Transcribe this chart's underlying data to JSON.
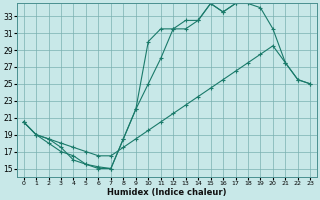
{
  "xlabel": "Humidex (Indice chaleur)",
  "bg_color": "#c8e8e8",
  "line_color": "#1a7a6a",
  "grid_color": "#7ab0b0",
  "xlim": [
    -0.5,
    23.5
  ],
  "ylim": [
    14.0,
    34.5
  ],
  "yticks": [
    15,
    17,
    19,
    21,
    23,
    25,
    27,
    29,
    31,
    33
  ],
  "xticks": [
    0,
    1,
    2,
    3,
    4,
    5,
    6,
    7,
    8,
    9,
    10,
    11,
    12,
    13,
    14,
    15,
    16,
    17,
    18,
    19,
    20,
    21,
    22,
    23
  ],
  "series": [
    {
      "x": [
        0,
        1,
        2,
        3,
        4,
        5,
        6,
        7,
        8,
        9,
        10,
        11,
        12,
        13,
        14,
        15,
        16,
        17,
        18,
        19,
        20,
        21,
        22,
        23
      ],
      "y": [
        20.5,
        19.0,
        18.0,
        17.0,
        16.5,
        15.5,
        15.2,
        15.0,
        18.5,
        22.0,
        25.0,
        28.0,
        31.5,
        31.5,
        32.5,
        34.5,
        33.5,
        34.5,
        34.5,
        34.0,
        31.5,
        27.5,
        25.5,
        25.0
      ]
    },
    {
      "x": [
        0,
        1,
        2,
        3,
        4,
        5,
        6,
        7,
        8,
        9,
        10,
        11,
        12,
        13,
        14,
        15,
        16,
        17
      ],
      "y": [
        20.5,
        19.0,
        18.5,
        17.5,
        16.0,
        15.5,
        15.0,
        15.0,
        18.5,
        22.0,
        30.0,
        31.5,
        31.5,
        32.5,
        32.5,
        34.5,
        33.5,
        34.5
      ]
    },
    {
      "x": [
        0,
        1,
        2,
        3,
        4,
        5,
        6,
        7,
        8,
        9,
        10,
        11,
        12,
        13,
        14,
        15,
        16,
        17,
        18,
        19,
        20,
        21,
        22,
        23
      ],
      "y": [
        20.5,
        19.0,
        18.5,
        18.0,
        17.5,
        17.0,
        16.5,
        16.5,
        17.5,
        18.5,
        19.5,
        20.5,
        21.5,
        22.5,
        23.5,
        24.5,
        25.5,
        26.5,
        27.5,
        28.5,
        29.5,
        27.5,
        25.5,
        25.0
      ]
    }
  ]
}
